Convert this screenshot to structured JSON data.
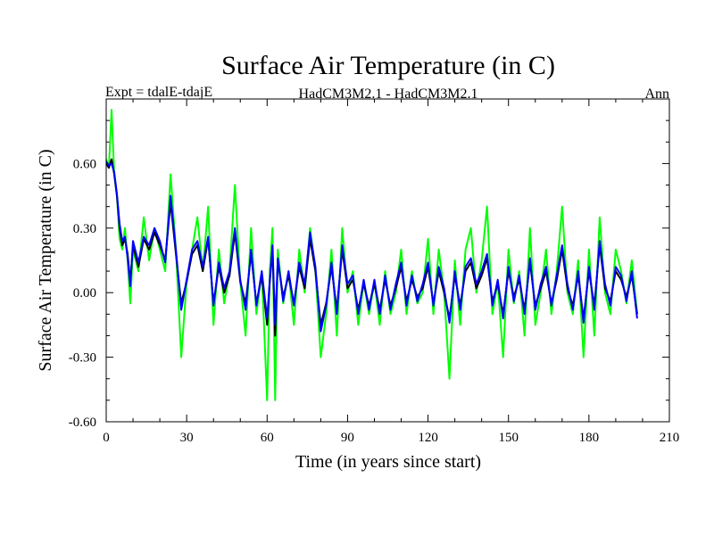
{
  "chart_data": {
    "type": "line",
    "title": "Surface Air Temperature (in C)",
    "subtitle_left": "Expt = tdalE-tdajE",
    "subtitle_center": "HadCM3M2.1 - HadCM3M2.1",
    "subtitle_right": "Ann",
    "xlabel": "Time (in years since start)",
    "ylabel": "Surface Air Temperature (in C)",
    "xlim": [
      0,
      210
    ],
    "ylim": [
      -0.6,
      0.9
    ],
    "x_ticks": [
      0,
      30,
      60,
      90,
      120,
      150,
      180,
      210
    ],
    "x_tick_labels": [
      "0",
      "30",
      "60",
      "90",
      "120",
      "150",
      "180",
      "210"
    ],
    "y_ticks": [
      -0.6,
      -0.3,
      0.0,
      0.3,
      0.6
    ],
    "y_tick_labels": [
      "-0.60",
      "-0.30",
      "0.00",
      "0.30",
      "0.60"
    ],
    "series": [
      {
        "name": "green",
        "color": "#00ff00",
        "x": [
          0,
          1,
          2,
          3,
          4,
          5,
          6,
          7,
          8,
          9,
          10,
          12,
          14,
          16,
          18,
          20,
          22,
          24,
          26,
          28,
          30,
          32,
          34,
          36,
          38,
          40,
          42,
          44,
          46,
          48,
          50,
          52,
          54,
          56,
          58,
          60,
          61,
          62,
          63,
          64,
          66,
          68,
          70,
          72,
          74,
          76,
          78,
          80,
          82,
          84,
          86,
          88,
          90,
          92,
          94,
          96,
          98,
          100,
          102,
          104,
          106,
          108,
          110,
          112,
          114,
          116,
          118,
          120,
          122,
          124,
          126,
          128,
          130,
          132,
          134,
          136,
          138,
          140,
          142,
          144,
          146,
          148,
          150,
          152,
          154,
          156,
          158,
          160,
          162,
          164,
          166,
          168,
          170,
          172,
          174,
          176,
          178,
          180,
          182,
          184,
          186,
          188,
          190,
          192,
          194,
          196,
          198
        ],
        "values": [
          0.62,
          0.58,
          0.85,
          0.55,
          0.45,
          0.25,
          0.2,
          0.3,
          0.15,
          -0.05,
          0.2,
          0.1,
          0.35,
          0.15,
          0.3,
          0.2,
          0.1,
          0.55,
          0.2,
          -0.3,
          0.05,
          0.2,
          0.35,
          0.1,
          0.4,
          -0.15,
          0.2,
          -0.05,
          0.1,
          0.5,
          0.05,
          -0.2,
          0.3,
          -0.1,
          0.1,
          -0.5,
          0.1,
          0.3,
          -0.5,
          0.2,
          -0.05,
          0.1,
          -0.15,
          0.2,
          0.0,
          0.3,
          0.1,
          -0.3,
          -0.1,
          0.2,
          -0.2,
          0.3,
          0.0,
          0.1,
          -0.15,
          0.05,
          -0.1,
          0.05,
          -0.15,
          0.1,
          -0.1,
          0.0,
          0.2,
          -0.1,
          0.1,
          -0.05,
          0.0,
          0.25,
          -0.1,
          0.2,
          0.0,
          -0.4,
          0.15,
          -0.15,
          0.2,
          0.3,
          0.0,
          0.15,
          0.4,
          -0.1,
          0.05,
          -0.3,
          0.2,
          -0.05,
          0.1,
          -0.2,
          0.3,
          -0.15,
          0.0,
          0.2,
          -0.1,
          0.1,
          0.4,
          0.0,
          -0.1,
          0.15,
          -0.3,
          0.2,
          -0.2,
          0.35,
          0.0,
          -0.1,
          0.2,
          0.1,
          -0.05,
          0.15,
          -0.1
        ]
      },
      {
        "name": "black",
        "color": "#000000",
        "x": [
          0,
          1,
          2,
          3,
          4,
          5,
          6,
          7,
          8,
          9,
          10,
          12,
          14,
          16,
          18,
          20,
          22,
          24,
          26,
          28,
          30,
          32,
          34,
          36,
          38,
          40,
          42,
          44,
          46,
          48,
          50,
          52,
          54,
          56,
          58,
          60,
          61,
          62,
          63,
          64,
          66,
          68,
          70,
          72,
          74,
          76,
          78,
          80,
          82,
          84,
          86,
          88,
          90,
          92,
          94,
          96,
          98,
          100,
          102,
          104,
          106,
          108,
          110,
          112,
          114,
          116,
          118,
          120,
          122,
          124,
          126,
          128,
          130,
          132,
          134,
          136,
          138,
          140,
          142,
          144,
          146,
          148,
          150,
          152,
          154,
          156,
          158,
          160,
          162,
          164,
          166,
          168,
          170,
          172,
          174,
          176,
          178,
          180,
          182,
          184,
          186,
          188,
          190,
          192,
          194,
          196,
          198
        ],
        "values": [
          0.6,
          0.58,
          0.62,
          0.55,
          0.45,
          0.3,
          0.22,
          0.25,
          0.18,
          0.05,
          0.22,
          0.12,
          0.25,
          0.2,
          0.28,
          0.22,
          0.15,
          0.42,
          0.18,
          -0.05,
          0.05,
          0.18,
          0.22,
          0.1,
          0.25,
          -0.05,
          0.12,
          0.0,
          0.08,
          0.28,
          0.05,
          -0.05,
          0.18,
          -0.05,
          0.08,
          -0.15,
          0.05,
          0.2,
          -0.2,
          0.15,
          -0.02,
          0.08,
          -0.05,
          0.12,
          0.02,
          0.25,
          0.1,
          -0.15,
          -0.05,
          0.12,
          -0.08,
          0.2,
          0.02,
          0.06,
          -0.08,
          0.04,
          -0.06,
          0.04,
          -0.08,
          0.06,
          -0.06,
          0.02,
          0.12,
          -0.04,
          0.06,
          -0.02,
          0.02,
          0.12,
          -0.05,
          0.1,
          0.0,
          -0.12,
          0.08,
          -0.06,
          0.1,
          0.14,
          0.02,
          0.08,
          0.16,
          -0.04,
          0.04,
          -0.1,
          0.1,
          -0.02,
          0.06,
          -0.08,
          0.14,
          -0.06,
          0.02,
          0.1,
          -0.05,
          0.06,
          0.2,
          0.02,
          -0.06,
          0.08,
          -0.12,
          0.1,
          -0.06,
          0.22,
          0.02,
          -0.04,
          0.1,
          0.06,
          -0.02,
          0.08,
          -0.1
        ]
      },
      {
        "name": "blue",
        "color": "#0000ff",
        "x": [
          0,
          1,
          2,
          3,
          4,
          5,
          6,
          7,
          8,
          9,
          10,
          12,
          14,
          16,
          18,
          20,
          22,
          24,
          26,
          28,
          30,
          32,
          34,
          36,
          38,
          40,
          42,
          44,
          46,
          48,
          50,
          52,
          54,
          56,
          58,
          60,
          61,
          62,
          63,
          64,
          66,
          68,
          70,
          72,
          74,
          76,
          78,
          80,
          82,
          84,
          86,
          88,
          90,
          92,
          94,
          96,
          98,
          100,
          102,
          104,
          106,
          108,
          110,
          112,
          114,
          116,
          118,
          120,
          122,
          124,
          126,
          128,
          130,
          132,
          134,
          136,
          138,
          140,
          142,
          144,
          146,
          148,
          150,
          152,
          154,
          156,
          158,
          160,
          162,
          164,
          166,
          168,
          170,
          172,
          174,
          176,
          178,
          180,
          182,
          184,
          186,
          188,
          190,
          192,
          194,
          196,
          198
        ],
        "values": [
          0.61,
          0.59,
          0.6,
          0.56,
          0.46,
          0.32,
          0.24,
          0.26,
          0.16,
          0.03,
          0.24,
          0.14,
          0.26,
          0.22,
          0.3,
          0.24,
          0.14,
          0.45,
          0.2,
          -0.08,
          0.06,
          0.2,
          0.24,
          0.12,
          0.26,
          -0.06,
          0.14,
          0.02,
          0.1,
          0.3,
          0.06,
          -0.08,
          0.2,
          -0.06,
          0.1,
          -0.12,
          0.06,
          0.22,
          -0.15,
          0.16,
          -0.04,
          0.1,
          -0.06,
          0.14,
          0.04,
          0.28,
          0.12,
          -0.18,
          -0.06,
          0.14,
          -0.1,
          0.22,
          0.04,
          0.08,
          -0.1,
          0.06,
          -0.08,
          0.06,
          -0.1,
          0.08,
          -0.08,
          0.04,
          0.14,
          -0.06,
          0.08,
          -0.04,
          0.04,
          0.14,
          -0.06,
          0.12,
          0.02,
          -0.14,
          0.1,
          -0.08,
          0.12,
          0.16,
          0.04,
          0.1,
          0.18,
          -0.06,
          0.06,
          -0.12,
          0.12,
          -0.04,
          0.08,
          -0.1,
          0.16,
          -0.08,
          0.04,
          0.12,
          -0.06,
          0.08,
          0.22,
          0.04,
          -0.08,
          0.1,
          -0.14,
          0.12,
          -0.08,
          0.24,
          0.04,
          -0.06,
          0.12,
          0.08,
          -0.04,
          0.1,
          -0.12
        ]
      }
    ]
  }
}
